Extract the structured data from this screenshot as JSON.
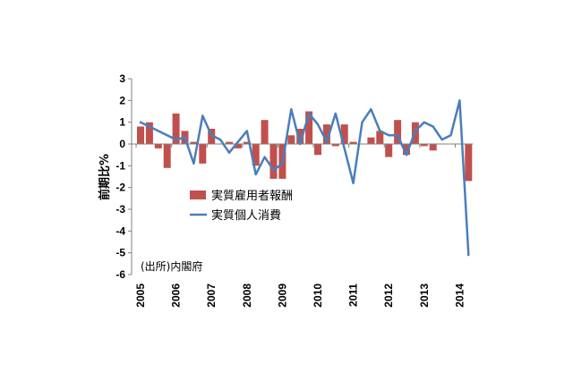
{
  "chart_data": {
    "type": "bar",
    "ylabel": "前期比%",
    "ylim": [
      -6,
      3
    ],
    "y_ticks": [
      3,
      2,
      1,
      0,
      -1,
      -2,
      -3,
      -4,
      -5,
      -6
    ],
    "x_tick_labels": [
      "2005",
      "2006",
      "2007",
      "2008",
      "2009",
      "2010",
      "2011",
      "2012",
      "2013",
      "2014"
    ],
    "x": [
      2005,
      2005.25,
      2005.5,
      2005.75,
      2006,
      2006.25,
      2006.5,
      2006.75,
      2007,
      2007.25,
      2007.5,
      2007.75,
      2008,
      2008.25,
      2008.5,
      2008.75,
      2009,
      2009.25,
      2009.5,
      2009.75,
      2010,
      2010.25,
      2010.5,
      2010.75,
      2011,
      2011.25,
      2011.5,
      2011.75,
      2012,
      2012.25,
      2012.5,
      2012.75,
      2013,
      2013.25,
      2013.5,
      2013.75,
      2014,
      2014.25
    ],
    "series": [
      {
        "name": "実質雇用者報酬",
        "type": "bar",
        "color": "#C0504D",
        "values": [
          0.8,
          1.0,
          -0.2,
          -1.1,
          1.4,
          0.6,
          0.1,
          -0.9,
          0.7,
          0.0,
          0.1,
          -0.2,
          0.1,
          -1.0,
          1.1,
          -1.6,
          -1.6,
          0.4,
          0.7,
          1.5,
          -0.5,
          0.9,
          -0.1,
          0.9,
          0.1,
          0.0,
          0.3,
          0.6,
          -0.6,
          1.1,
          -0.5,
          1.0,
          -0.1,
          -0.3,
          0.0,
          0.0,
          0.0,
          -1.7
        ]
      },
      {
        "name": "実質個人消費",
        "type": "line",
        "color": "#4A7EBB",
        "values": [
          1.0,
          0.8,
          0.6,
          0.4,
          0.2,
          0.3,
          -0.9,
          1.3,
          0.4,
          0.2,
          -0.4,
          0.1,
          0.6,
          -1.4,
          -0.6,
          -1.2,
          -0.9,
          1.6,
          0.0,
          1.4,
          0.9,
          0.1,
          1.4,
          -0.2,
          -1.8,
          1.0,
          1.6,
          0.6,
          0.4,
          0.4,
          -0.5,
          0.6,
          1.0,
          0.8,
          0.2,
          0.4,
          2.0,
          -5.1
        ]
      }
    ],
    "legend": "center-left",
    "grid": false,
    "annotation": "(出所)内閣府"
  }
}
